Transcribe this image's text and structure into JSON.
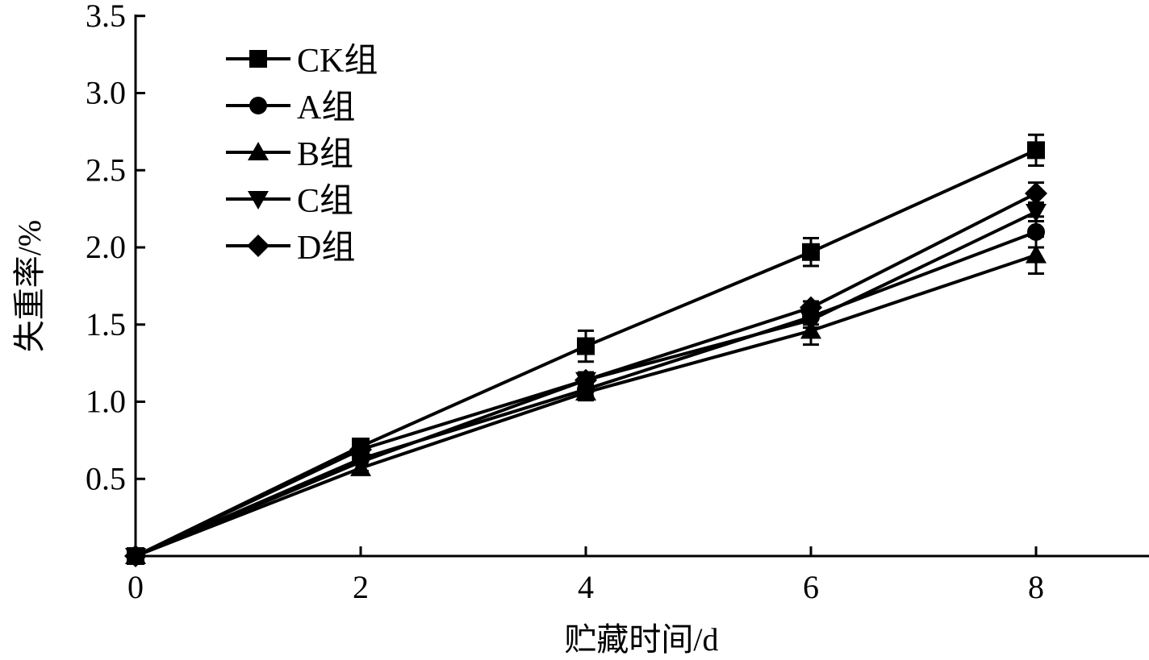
{
  "chart_data": {
    "type": "line",
    "title": "",
    "xlabel": "贮藏时间/d",
    "ylabel": "失重率/%",
    "x": [
      0,
      2,
      4,
      6,
      8
    ],
    "xlim": [
      0,
      9
    ],
    "ylim": [
      0,
      3.5
    ],
    "xticks": [
      "0",
      "2",
      "4",
      "6",
      "8"
    ],
    "yticks": [
      "0.5",
      "1.0",
      "1.5",
      "2.0",
      "2.5",
      "3.0",
      "3.5"
    ],
    "grid": false,
    "legend_position": "top-left",
    "series": [
      {
        "name": "CK组",
        "marker": "square",
        "values": [
          0,
          0.71,
          1.36,
          1.97,
          2.63
        ],
        "errors": [
          0,
          0.02,
          0.1,
          0.09,
          0.1
        ]
      },
      {
        "name": "A组",
        "marker": "circle",
        "values": [
          0,
          0.63,
          1.08,
          1.55,
          2.1
        ],
        "errors": [
          0,
          0.02,
          0.04,
          0.05,
          0.1
        ]
      },
      {
        "name": "B组",
        "marker": "triangle-up",
        "values": [
          0,
          0.57,
          1.06,
          1.46,
          1.95
        ],
        "errors": [
          0,
          0.02,
          0.05,
          0.09,
          0.12
        ]
      },
      {
        "name": "C组",
        "marker": "triangle-down",
        "values": [
          0,
          0.61,
          1.14,
          1.53,
          2.23
        ],
        "errors": [
          0,
          0.02,
          0.05,
          0.05,
          0.06
        ]
      },
      {
        "name": "D组",
        "marker": "diamond",
        "values": [
          0,
          0.69,
          1.14,
          1.61,
          2.35
        ],
        "errors": [
          0,
          0.02,
          0.05,
          0.04,
          0.07
        ]
      }
    ]
  }
}
